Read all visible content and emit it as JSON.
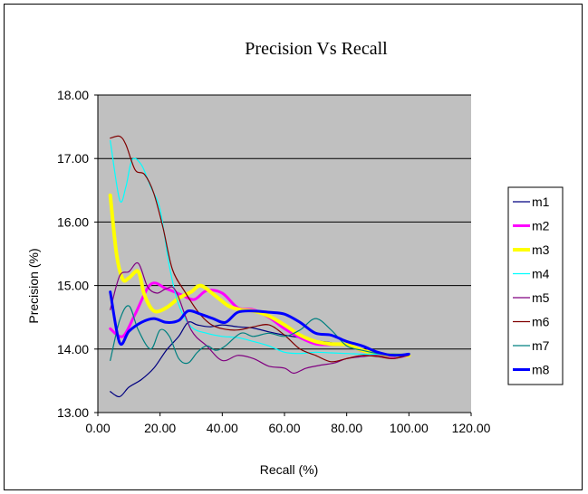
{
  "chart_data": {
    "type": "line",
    "title": "Precision Vs Recall",
    "xlabel": "Recall (%)",
    "ylabel": "Precision (%)",
    "xlim": [
      0,
      120
    ],
    "ylim": [
      13,
      18
    ],
    "xticks": [
      "0.00",
      "20.00",
      "40.00",
      "60.00",
      "80.00",
      "100.00",
      "120.00"
    ],
    "yticks": [
      "13.00",
      "14.00",
      "15.00",
      "16.00",
      "17.00",
      "18.00"
    ],
    "plot_background": "#c0c0c0",
    "grid": "horizontal",
    "legend_position": "right",
    "series": [
      {
        "name": "m1",
        "color": "#000080",
        "width": 1.2,
        "points": [
          [
            4,
            13.33
          ],
          [
            7,
            13.25
          ],
          [
            10,
            13.4
          ],
          [
            14,
            13.52
          ],
          [
            18,
            13.7
          ],
          [
            22,
            13.98
          ],
          [
            26,
            14.2
          ],
          [
            29,
            14.42
          ],
          [
            32,
            14.38
          ],
          [
            36,
            14.35
          ],
          [
            40,
            14.38
          ],
          [
            45,
            14.35
          ],
          [
            50,
            14.33
          ],
          [
            55,
            14.27
          ],
          [
            60,
            14.22
          ],
          [
            65,
            14.18
          ],
          [
            70,
            14.13
          ],
          [
            75,
            14.1
          ],
          [
            80,
            14.05
          ],
          [
            85,
            14.0
          ],
          [
            90,
            13.92
          ],
          [
            95,
            13.88
          ],
          [
            100,
            13.9
          ]
        ]
      },
      {
        "name": "m2",
        "color": "#ff00ff",
        "width": 3,
        "points": [
          [
            4,
            14.32
          ],
          [
            8,
            14.2
          ],
          [
            12,
            14.55
          ],
          [
            17,
            15.02
          ],
          [
            22,
            14.95
          ],
          [
            27,
            14.85
          ],
          [
            31,
            14.78
          ],
          [
            35,
            14.92
          ],
          [
            40,
            14.88
          ],
          [
            45,
            14.65
          ],
          [
            50,
            14.62
          ],
          [
            55,
            14.5
          ],
          [
            60,
            14.32
          ],
          [
            65,
            14.18
          ],
          [
            70,
            14.08
          ],
          [
            75,
            14.07
          ],
          [
            80,
            14.07
          ],
          [
            85,
            13.97
          ],
          [
            90,
            13.92
          ],
          [
            95,
            13.88
          ],
          [
            100,
            13.9
          ]
        ]
      },
      {
        "name": "m3",
        "color": "#ffff00",
        "width": 4,
        "points": [
          [
            4,
            16.42
          ],
          [
            6,
            15.5
          ],
          [
            8,
            15.1
          ],
          [
            10,
            15.12
          ],
          [
            13,
            15.22
          ],
          [
            15,
            14.85
          ],
          [
            18,
            14.6
          ],
          [
            22,
            14.65
          ],
          [
            26,
            14.8
          ],
          [
            30,
            14.9
          ],
          [
            33,
            15.0
          ],
          [
            37,
            14.87
          ],
          [
            42,
            14.68
          ],
          [
            46,
            14.62
          ],
          [
            50,
            14.6
          ],
          [
            55,
            14.52
          ],
          [
            60,
            14.38
          ],
          [
            65,
            14.22
          ],
          [
            70,
            14.12
          ],
          [
            75,
            14.08
          ],
          [
            80,
            14.07
          ],
          [
            85,
            13.98
          ],
          [
            90,
            13.92
          ],
          [
            95,
            13.9
          ],
          [
            100,
            13.9
          ]
        ]
      },
      {
        "name": "m4",
        "color": "#00ffff",
        "width": 1.2,
        "points": [
          [
            4,
            17.28
          ],
          [
            7,
            16.35
          ],
          [
            9,
            16.55
          ],
          [
            11,
            16.98
          ],
          [
            14,
            16.9
          ],
          [
            17,
            16.55
          ],
          [
            20,
            16.2
          ],
          [
            23,
            15.3
          ],
          [
            26,
            14.7
          ],
          [
            30,
            14.35
          ],
          [
            35,
            14.25
          ],
          [
            40,
            14.2
          ],
          [
            45,
            14.18
          ],
          [
            50,
            14.12
          ],
          [
            55,
            14.05
          ],
          [
            60,
            13.95
          ],
          [
            65,
            13.93
          ],
          [
            70,
            13.95
          ],
          [
            75,
            13.94
          ],
          [
            80,
            13.93
          ],
          [
            85,
            13.92
          ],
          [
            90,
            13.92
          ],
          [
            95,
            13.9
          ],
          [
            100,
            13.9
          ]
        ]
      },
      {
        "name": "m5",
        "color": "#800080",
        "width": 1.2,
        "points": [
          [
            4,
            14.62
          ],
          [
            7,
            15.15
          ],
          [
            10,
            15.22
          ],
          [
            13,
            15.35
          ],
          [
            16,
            14.98
          ],
          [
            19,
            14.88
          ],
          [
            22,
            14.95
          ],
          [
            25,
            14.92
          ],
          [
            30,
            14.3
          ],
          [
            35,
            14.05
          ],
          [
            40,
            13.82
          ],
          [
            45,
            13.9
          ],
          [
            50,
            13.85
          ],
          [
            55,
            13.73
          ],
          [
            60,
            13.7
          ],
          [
            63,
            13.62
          ],
          [
            67,
            13.7
          ],
          [
            72,
            13.75
          ],
          [
            76,
            13.78
          ],
          [
            80,
            13.85
          ],
          [
            85,
            13.88
          ],
          [
            90,
            13.9
          ],
          [
            95,
            13.85
          ],
          [
            100,
            13.9
          ]
        ]
      },
      {
        "name": "m6",
        "color": "#800000",
        "width": 1.2,
        "points": [
          [
            4,
            17.32
          ],
          [
            7,
            17.35
          ],
          [
            9,
            17.22
          ],
          [
            12,
            16.82
          ],
          [
            15,
            16.75
          ],
          [
            18,
            16.45
          ],
          [
            21,
            15.9
          ],
          [
            24,
            15.25
          ],
          [
            28,
            14.9
          ],
          [
            32,
            14.6
          ],
          [
            36,
            14.4
          ],
          [
            40,
            14.32
          ],
          [
            45,
            14.3
          ],
          [
            50,
            14.35
          ],
          [
            55,
            14.38
          ],
          [
            60,
            14.22
          ],
          [
            65,
            14.0
          ],
          [
            70,
            13.9
          ],
          [
            75,
            13.8
          ],
          [
            80,
            13.85
          ],
          [
            85,
            13.9
          ],
          [
            90,
            13.88
          ],
          [
            95,
            13.85
          ],
          [
            100,
            13.92
          ]
        ]
      },
      {
        "name": "m7",
        "color": "#008080",
        "width": 1.2,
        "points": [
          [
            4,
            13.82
          ],
          [
            7,
            14.45
          ],
          [
            10,
            14.68
          ],
          [
            13,
            14.3
          ],
          [
            17,
            14.0
          ],
          [
            20,
            14.3
          ],
          [
            23,
            14.2
          ],
          [
            26,
            13.85
          ],
          [
            29,
            13.78
          ],
          [
            32,
            13.95
          ],
          [
            35,
            14.05
          ],
          [
            38,
            13.98
          ],
          [
            41,
            14.05
          ],
          [
            46,
            14.25
          ],
          [
            50,
            14.2
          ],
          [
            55,
            14.25
          ],
          [
            60,
            14.2
          ],
          [
            65,
            14.3
          ],
          [
            70,
            14.48
          ],
          [
            75,
            14.3
          ],
          [
            80,
            14.05
          ],
          [
            85,
            13.98
          ],
          [
            90,
            13.93
          ],
          [
            95,
            13.92
          ],
          [
            100,
            13.92
          ]
        ]
      },
      {
        "name": "m8",
        "color": "#0000ff",
        "width": 3,
        "points": [
          [
            4,
            14.9
          ],
          [
            7,
            14.1
          ],
          [
            10,
            14.28
          ],
          [
            14,
            14.42
          ],
          [
            18,
            14.48
          ],
          [
            22,
            14.42
          ],
          [
            26,
            14.45
          ],
          [
            29,
            14.6
          ],
          [
            33,
            14.55
          ],
          [
            37,
            14.48
          ],
          [
            41,
            14.42
          ],
          [
            45,
            14.58
          ],
          [
            50,
            14.6
          ],
          [
            55,
            14.58
          ],
          [
            60,
            14.55
          ],
          [
            65,
            14.42
          ],
          [
            70,
            14.25
          ],
          [
            75,
            14.22
          ],
          [
            80,
            14.12
          ],
          [
            85,
            14.05
          ],
          [
            90,
            13.95
          ],
          [
            95,
            13.9
          ],
          [
            100,
            13.92
          ]
        ]
      }
    ]
  }
}
